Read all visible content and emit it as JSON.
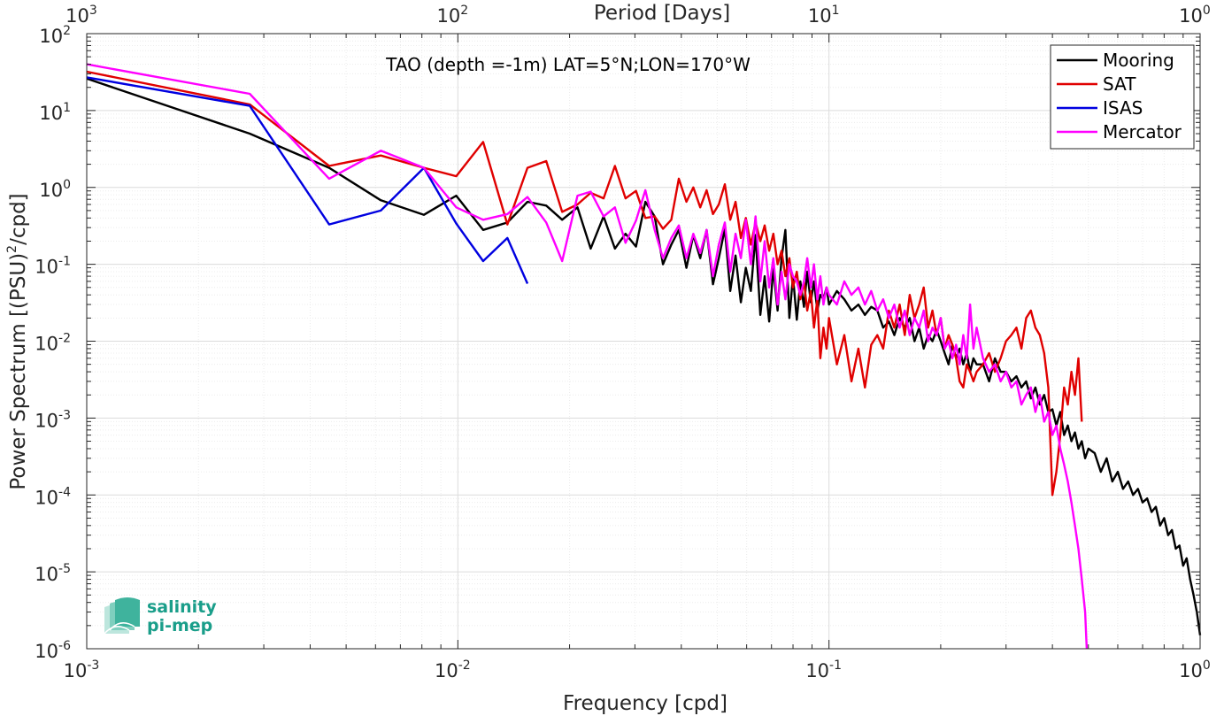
{
  "chart_data": {
    "type": "line",
    "annotation": "TAO (depth =-1m) LAT=5°N;LON=170°W",
    "xlabel": "Frequency [cpd]",
    "ylabel": "Power Spectrum [(PSU)",
    "ylabel_sup": "2",
    "ylabel_tail": "/cpd]",
    "top_xlabel": "Period [Days]",
    "xscale": "log",
    "yscale": "log",
    "xlim": [
      0.001,
      1
    ],
    "ylim": [
      1e-06,
      100
    ],
    "grid": true,
    "legend_position": "top-right",
    "x_ticks": [
      {
        "base": "10",
        "exp": "-3"
      },
      {
        "base": "10",
        "exp": "-2"
      },
      {
        "base": "10",
        "exp": "-1"
      },
      {
        "base": "10",
        "exp": "0"
      }
    ],
    "y_ticks": [
      {
        "base": "10",
        "exp": "2"
      },
      {
        "base": "10",
        "exp": "1"
      },
      {
        "base": "10",
        "exp": "0"
      },
      {
        "base": "10",
        "exp": "-1"
      },
      {
        "base": "10",
        "exp": "-2"
      },
      {
        "base": "10",
        "exp": "-3"
      },
      {
        "base": "10",
        "exp": "-4"
      },
      {
        "base": "10",
        "exp": "-5"
      },
      {
        "base": "10",
        "exp": "-6"
      }
    ],
    "top_ticks": [
      {
        "base": "10",
        "exp": "3"
      },
      {
        "base": "10",
        "exp": "2"
      },
      {
        "base": "10",
        "exp": "1"
      },
      {
        "base": "10",
        "exp": "0"
      }
    ],
    "series": [
      {
        "name": "Mooring",
        "color": "#000000",
        "x": [
          0.001,
          0.00275,
          0.0045,
          0.0062,
          0.0081,
          0.0099,
          0.0117,
          0.0136,
          0.0154,
          0.0173,
          0.0191,
          0.021,
          0.0228,
          0.0247,
          0.0265,
          0.0283,
          0.0302,
          0.032,
          0.0339,
          0.0357,
          0.0376,
          0.0394,
          0.0413,
          0.0431,
          0.045,
          0.0468,
          0.0487,
          0.0505,
          0.0524,
          0.0542,
          0.056,
          0.0579,
          0.0597,
          0.0616,
          0.0634,
          0.0653,
          0.0671,
          0.069,
          0.0708,
          0.0727,
          0.0745,
          0.0763,
          0.0782,
          0.08,
          0.0819,
          0.0837,
          0.0856,
          0.0874,
          0.0893,
          0.0911,
          0.093,
          0.0948,
          0.0966,
          0.0985,
          0.1,
          0.105,
          0.11,
          0.115,
          0.12,
          0.125,
          0.13,
          0.135,
          0.14,
          0.145,
          0.15,
          0.155,
          0.16,
          0.165,
          0.17,
          0.175,
          0.18,
          0.185,
          0.19,
          0.195,
          0.2,
          0.205,
          0.21,
          0.215,
          0.22,
          0.225,
          0.23,
          0.235,
          0.24,
          0.245,
          0.25,
          0.26,
          0.27,
          0.28,
          0.29,
          0.3,
          0.31,
          0.32,
          0.33,
          0.34,
          0.35,
          0.36,
          0.37,
          0.38,
          0.39,
          0.4,
          0.41,
          0.42,
          0.43,
          0.44,
          0.45,
          0.46,
          0.47,
          0.48,
          0.49,
          0.5,
          0.52,
          0.54,
          0.56,
          0.58,
          0.6,
          0.62,
          0.64,
          0.66,
          0.68,
          0.7,
          0.72,
          0.74,
          0.76,
          0.78,
          0.8,
          0.82,
          0.84,
          0.86,
          0.88,
          0.9,
          0.92,
          0.94,
          0.96,
          0.98,
          1.0
        ],
        "y": [
          26,
          5,
          1.8,
          0.68,
          0.44,
          0.78,
          0.28,
          0.35,
          0.65,
          0.58,
          0.38,
          0.55,
          0.16,
          0.42,
          0.16,
          0.25,
          0.17,
          0.65,
          0.42,
          0.1,
          0.18,
          0.28,
          0.09,
          0.24,
          0.12,
          0.28,
          0.055,
          0.12,
          0.29,
          0.045,
          0.13,
          0.032,
          0.09,
          0.045,
          0.24,
          0.022,
          0.07,
          0.018,
          0.09,
          0.025,
          0.12,
          0.28,
          0.02,
          0.07,
          0.019,
          0.06,
          0.028,
          0.08,
          0.032,
          0.06,
          0.025,
          0.04,
          0.035,
          0.05,
          0.03,
          0.045,
          0.035,
          0.025,
          0.03,
          0.022,
          0.028,
          0.025,
          0.015,
          0.018,
          0.012,
          0.02,
          0.015,
          0.02,
          0.01,
          0.015,
          0.008,
          0.012,
          0.01,
          0.014,
          0.01,
          0.007,
          0.005,
          0.009,
          0.006,
          0.008,
          0.005,
          0.007,
          0.004,
          0.006,
          0.005,
          0.005,
          0.003,
          0.006,
          0.004,
          0.004,
          0.003,
          0.0035,
          0.0025,
          0.003,
          0.0018,
          0.0025,
          0.0015,
          0.002,
          0.0012,
          0.0013,
          0.0008,
          0.0012,
          0.0006,
          0.0008,
          0.0005,
          0.00065,
          0.0004,
          0.0005,
          0.0003,
          0.0004,
          0.00035,
          0.0002,
          0.0003,
          0.00015,
          0.0002,
          0.00012,
          0.00015,
          0.0001,
          0.00012,
          8e-05,
          9e-05,
          6e-05,
          7e-05,
          4e-05,
          5e-05,
          3e-05,
          3.5e-05,
          2e-05,
          2.2e-05,
          1.2e-05,
          1.5e-05,
          8e-06,
          5e-06,
          3e-06,
          1.5e-06
        ]
      },
      {
        "name": "SAT",
        "color": "#e00000",
        "x": [
          0.001,
          0.00275,
          0.0045,
          0.0062,
          0.0081,
          0.0099,
          0.0117,
          0.0136,
          0.0154,
          0.0173,
          0.0191,
          0.021,
          0.0228,
          0.0247,
          0.0265,
          0.0283,
          0.0302,
          0.032,
          0.0339,
          0.0357,
          0.0376,
          0.0394,
          0.0413,
          0.0431,
          0.045,
          0.0468,
          0.0487,
          0.0505,
          0.0524,
          0.0542,
          0.056,
          0.0579,
          0.0597,
          0.0616,
          0.0634,
          0.0653,
          0.0671,
          0.069,
          0.0708,
          0.0727,
          0.0745,
          0.0763,
          0.0782,
          0.08,
          0.0819,
          0.0837,
          0.0856,
          0.0874,
          0.0893,
          0.0911,
          0.093,
          0.0948,
          0.0966,
          0.0985,
          0.1,
          0.105,
          0.11,
          0.115,
          0.12,
          0.125,
          0.13,
          0.135,
          0.14,
          0.145,
          0.15,
          0.155,
          0.16,
          0.165,
          0.17,
          0.175,
          0.18,
          0.185,
          0.19,
          0.195,
          0.2,
          0.205,
          0.21,
          0.215,
          0.22,
          0.225,
          0.23,
          0.235,
          0.24,
          0.245,
          0.25,
          0.26,
          0.27,
          0.28,
          0.29,
          0.3,
          0.31,
          0.32,
          0.33,
          0.34,
          0.35,
          0.36,
          0.37,
          0.38,
          0.39,
          0.4,
          0.41,
          0.42,
          0.43,
          0.44,
          0.45,
          0.46,
          0.47,
          0.48
        ],
        "y": [
          32,
          12,
          1.9,
          2.6,
          1.8,
          1.4,
          3.9,
          0.33,
          1.8,
          2.2,
          0.48,
          0.6,
          0.85,
          0.72,
          1.9,
          0.72,
          0.9,
          0.4,
          0.42,
          0.29,
          0.38,
          1.3,
          0.65,
          1.0,
          0.55,
          0.92,
          0.45,
          0.6,
          1.1,
          0.38,
          0.65,
          0.22,
          0.4,
          0.18,
          0.35,
          0.2,
          0.32,
          0.15,
          0.25,
          0.1,
          0.15,
          0.07,
          0.12,
          0.05,
          0.08,
          0.035,
          0.06,
          0.025,
          0.045,
          0.015,
          0.035,
          0.006,
          0.015,
          0.008,
          0.02,
          0.005,
          0.012,
          0.003,
          0.008,
          0.0025,
          0.009,
          0.012,
          0.008,
          0.025,
          0.015,
          0.03,
          0.012,
          0.04,
          0.02,
          0.03,
          0.05,
          0.015,
          0.025,
          0.012,
          0.02,
          0.008,
          0.012,
          0.009,
          0.006,
          0.003,
          0.0025,
          0.005,
          0.004,
          0.003,
          0.004,
          0.005,
          0.007,
          0.004,
          0.006,
          0.01,
          0.012,
          0.015,
          0.008,
          0.02,
          0.025,
          0.015,
          0.012,
          0.007,
          0.0025,
          0.0001,
          0.0002,
          0.0006,
          0.0025,
          0.0015,
          0.004,
          0.002,
          0.006,
          0.0009
        ]
      },
      {
        "name": "ISAS",
        "color": "#0000e0",
        "x": [
          0.001,
          0.00275,
          0.0045,
          0.0062,
          0.0081,
          0.0099,
          0.0117,
          0.0136,
          0.0154
        ],
        "y": [
          27,
          11.5,
          0.33,
          0.5,
          1.8,
          0.34,
          0.11,
          0.22,
          0.056
        ]
      },
      {
        "name": "Mercator",
        "color": "#ff00ff",
        "x": [
          0.001,
          0.00275,
          0.0045,
          0.0062,
          0.0081,
          0.0099,
          0.0117,
          0.0136,
          0.0154,
          0.0173,
          0.0191,
          0.021,
          0.0228,
          0.0247,
          0.0265,
          0.0283,
          0.0302,
          0.032,
          0.0339,
          0.0357,
          0.0376,
          0.0394,
          0.0413,
          0.0431,
          0.045,
          0.0468,
          0.0487,
          0.0505,
          0.0524,
          0.0542,
          0.056,
          0.0579,
          0.0597,
          0.0616,
          0.0634,
          0.0653,
          0.0671,
          0.069,
          0.0708,
          0.0727,
          0.0745,
          0.0763,
          0.0782,
          0.08,
          0.0819,
          0.0837,
          0.0856,
          0.0874,
          0.0893,
          0.0911,
          0.093,
          0.0948,
          0.0966,
          0.0985,
          0.1,
          0.105,
          0.11,
          0.115,
          0.12,
          0.125,
          0.13,
          0.135,
          0.14,
          0.145,
          0.15,
          0.155,
          0.16,
          0.165,
          0.17,
          0.175,
          0.18,
          0.185,
          0.19,
          0.195,
          0.2,
          0.205,
          0.21,
          0.215,
          0.22,
          0.225,
          0.23,
          0.235,
          0.24,
          0.245,
          0.25,
          0.26,
          0.27,
          0.28,
          0.29,
          0.3,
          0.31,
          0.32,
          0.33,
          0.34,
          0.35,
          0.36,
          0.37,
          0.38,
          0.39,
          0.4,
          0.41,
          0.42,
          0.43,
          0.44,
          0.45,
          0.46,
          0.47,
          0.48,
          0.49,
          0.495
        ],
        "y": [
          40,
          16.5,
          1.3,
          3.0,
          1.8,
          0.55,
          0.38,
          0.45,
          0.75,
          0.35,
          0.11,
          0.78,
          0.88,
          0.42,
          0.55,
          0.19,
          0.37,
          0.92,
          0.28,
          0.12,
          0.22,
          0.32,
          0.12,
          0.25,
          0.14,
          0.28,
          0.07,
          0.18,
          0.35,
          0.08,
          0.25,
          0.12,
          0.38,
          0.1,
          0.42,
          0.06,
          0.2,
          0.05,
          0.12,
          0.03,
          0.08,
          0.035,
          0.1,
          0.07,
          0.06,
          0.04,
          0.06,
          0.12,
          0.05,
          0.1,
          0.035,
          0.07,
          0.03,
          0.05,
          0.04,
          0.03,
          0.06,
          0.04,
          0.05,
          0.03,
          0.045,
          0.025,
          0.035,
          0.02,
          0.03,
          0.015,
          0.025,
          0.012,
          0.02,
          0.015,
          0.025,
          0.01,
          0.015,
          0.012,
          0.02,
          0.008,
          0.01,
          0.006,
          0.009,
          0.005,
          0.012,
          0.006,
          0.03,
          0.008,
          0.015,
          0.006,
          0.004,
          0.005,
          0.003,
          0.004,
          0.0025,
          0.003,
          0.0015,
          0.002,
          0.0025,
          0.0012,
          0.002,
          0.0009,
          0.0012,
          0.0006,
          0.0008,
          0.0004,
          0.00025,
          0.00015,
          8e-05,
          4e-05,
          2e-05,
          8e-06,
          3e-06,
          1e-06
        ]
      }
    ]
  },
  "logo": {
    "line1": "salinity",
    "line2": "pi-mep",
    "color": "#1a9e8a"
  }
}
